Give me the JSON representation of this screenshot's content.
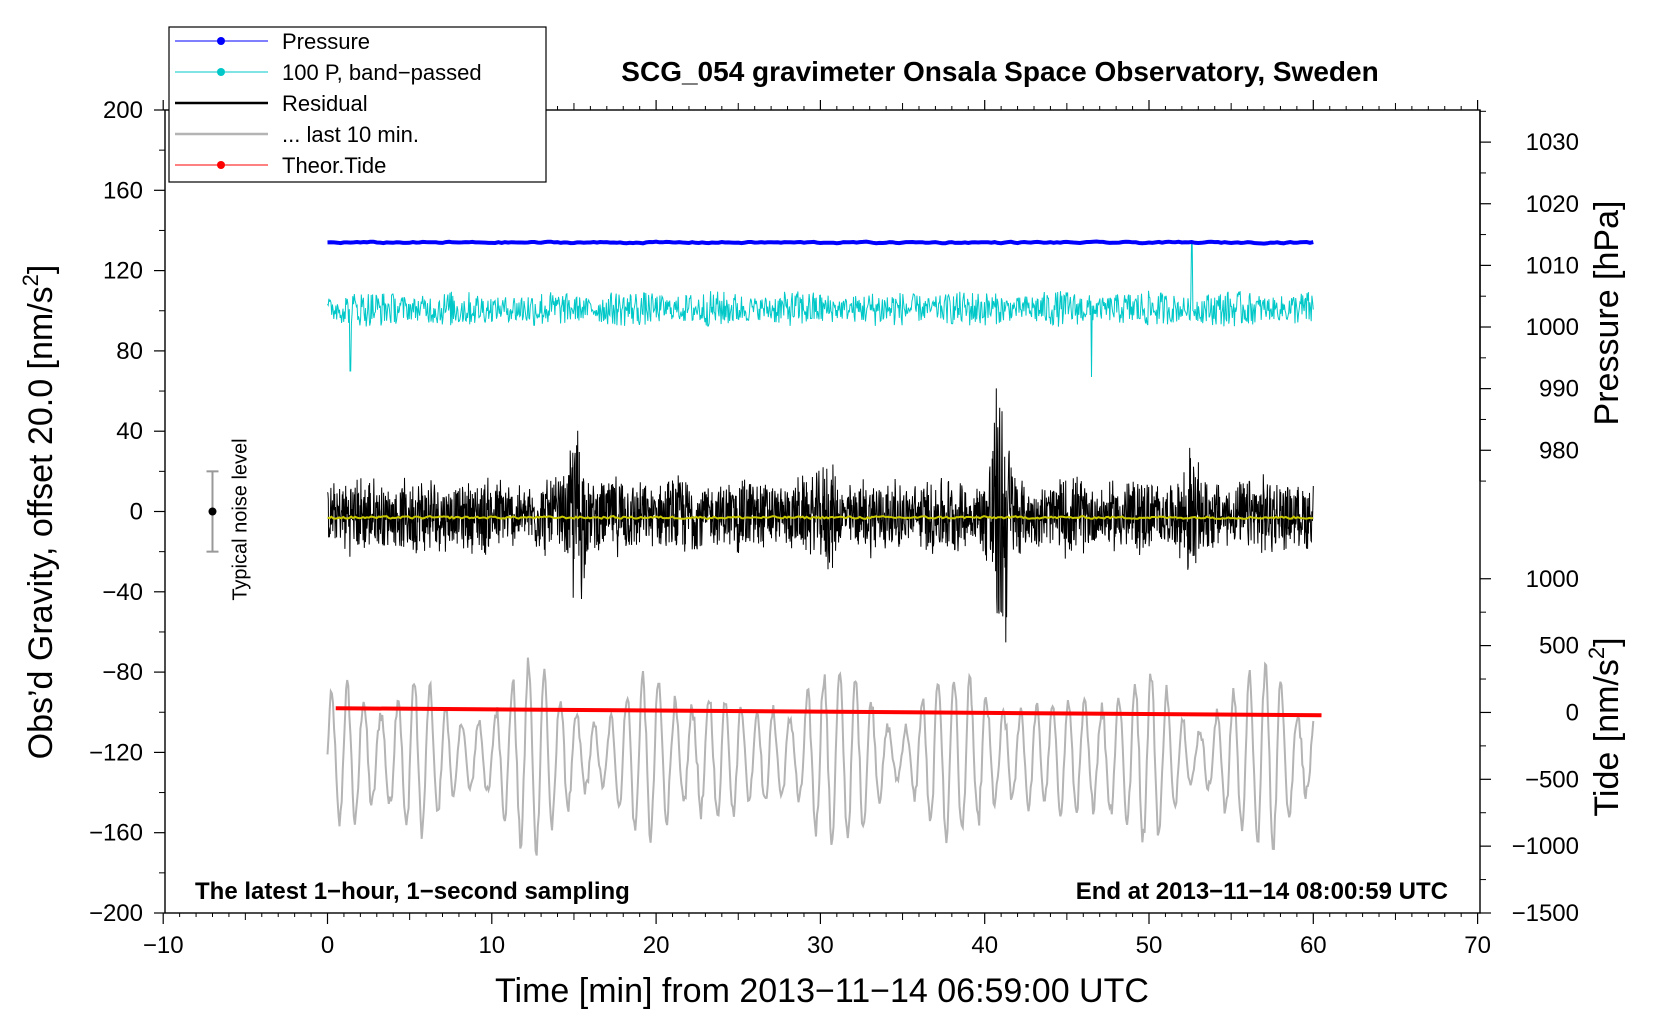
{
  "chart_data": {
    "type": "line",
    "title": "SCG_054 gravimeter Onsala Space Observatory, Sweden",
    "xlabel": "Time [min] from 2013−11−14 06:59:00 UTC",
    "ylabel_left": "Obs’d Gravity, offset 20.0 [nm/s",
    "ylabel_left_sup": "2",
    "ylabel_left_tail": "]",
    "ylabel_right_pressure": "Pressure [hPa]",
    "ylabel_right_tide": "Tide [nm/s",
    "ylabel_right_tide_sup": "2",
    "ylabel_right_tide_tail": "]",
    "xlim": [
      -10,
      70
    ],
    "ylim": [
      -200,
      200
    ],
    "x_ticks": [
      "−10",
      "0",
      "10",
      "20",
      "30",
      "40",
      "50",
      "60",
      "70"
    ],
    "x_tick_values": [
      -10,
      0,
      10,
      20,
      30,
      40,
      50,
      60,
      70
    ],
    "y_ticks": [
      "200",
      "160",
      "120",
      "80",
      "40",
      "0",
      "−40",
      "−80",
      "−120",
      "−160",
      "−200"
    ],
    "y_tick_values": [
      200,
      160,
      120,
      80,
      40,
      0,
      -40,
      -80,
      -120,
      -160,
      -200
    ],
    "pressure_axis": {
      "ticks": [
        "1030",
        "1020",
        "1010",
        "1000",
        "990",
        "980"
      ],
      "tick_values": [
        1030,
        1020,
        1010,
        1000,
        990,
        980
      ],
      "map_value_a": 1030,
      "map_gravity_a": 184,
      "map_value_b": 980,
      "map_gravity_b": 30.5
    },
    "tide_axis": {
      "ticks": [
        "1000",
        "500",
        "0",
        "−500",
        "−1000",
        "−1500"
      ],
      "tick_values": [
        1000,
        500,
        0,
        -500,
        -1000,
        -1500
      ],
      "map_value_a": 1000,
      "map_gravity_a": -33.5,
      "map_value_b": -1500,
      "map_gravity_b": -200
    },
    "legend": [
      {
        "label": "Pressure",
        "color": "#0000ff",
        "marker": true
      },
      {
        "label": "100 P, band−passed",
        "color": "#00c8c8",
        "marker": true
      },
      {
        "label": "Residual",
        "color": "#000000",
        "marker": false
      },
      {
        "label": "... last 10 min.",
        "color": "#b4b4b4",
        "marker": false
      },
      {
        "label": "Theor.Tide",
        "color": "#ff0000",
        "marker": true
      }
    ],
    "series": [
      {
        "name": "Pressure",
        "color": "#0000ff",
        "x_range": [
          0,
          60
        ],
        "level_gravity": 134,
        "amplitude": 0.6
      },
      {
        "name": "100 P, band-passed",
        "color": "#00c8c8",
        "x_range": [
          0,
          60
        ],
        "level_gravity": 101,
        "amplitude": 9,
        "spikes": [
          {
            "x": 52.6,
            "y": 134
          },
          {
            "x": 46.5,
            "y": 67
          },
          {
            "x": 1.4,
            "y": 70
          }
        ]
      },
      {
        "name": "Residual",
        "color": "#000000",
        "x_range": [
          0,
          60
        ],
        "level_gravity": -2,
        "amplitude": 22,
        "bursts": [
          {
            "x": 15.2,
            "amp": 3.0
          },
          {
            "x": 41.2,
            "amp": 3.2
          },
          {
            "x": 40.6,
            "amp": 2.6
          },
          {
            "x": 52.5,
            "amp": 1.8
          },
          {
            "x": 30.5,
            "amp": 1.6
          }
        ]
      },
      {
        "name": "Residual smoothed",
        "color": "#c8c800",
        "x_range": [
          0,
          60
        ],
        "level_gravity": -3,
        "amplitude": 0.8
      },
      {
        "name": "... last 10 min.",
        "color": "#b4b4b4",
        "x_range": [
          0,
          60
        ],
        "level_gravity": -122,
        "amplitude": 45
      },
      {
        "name": "Theor.Tide",
        "color": "#ff0000",
        "x": [
          0.5,
          60.5
        ],
        "y_gravity": [
          -98,
          -101.5
        ]
      }
    ],
    "noise_bar": {
      "x": -7,
      "center": 0,
      "half_range": 20,
      "label": "Typical noise level"
    },
    "annotations": {
      "bottom_left": "The latest 1−hour, 1−second sampling",
      "bottom_right": "End at 2013−11−14 08:00:59 UTC"
    }
  }
}
